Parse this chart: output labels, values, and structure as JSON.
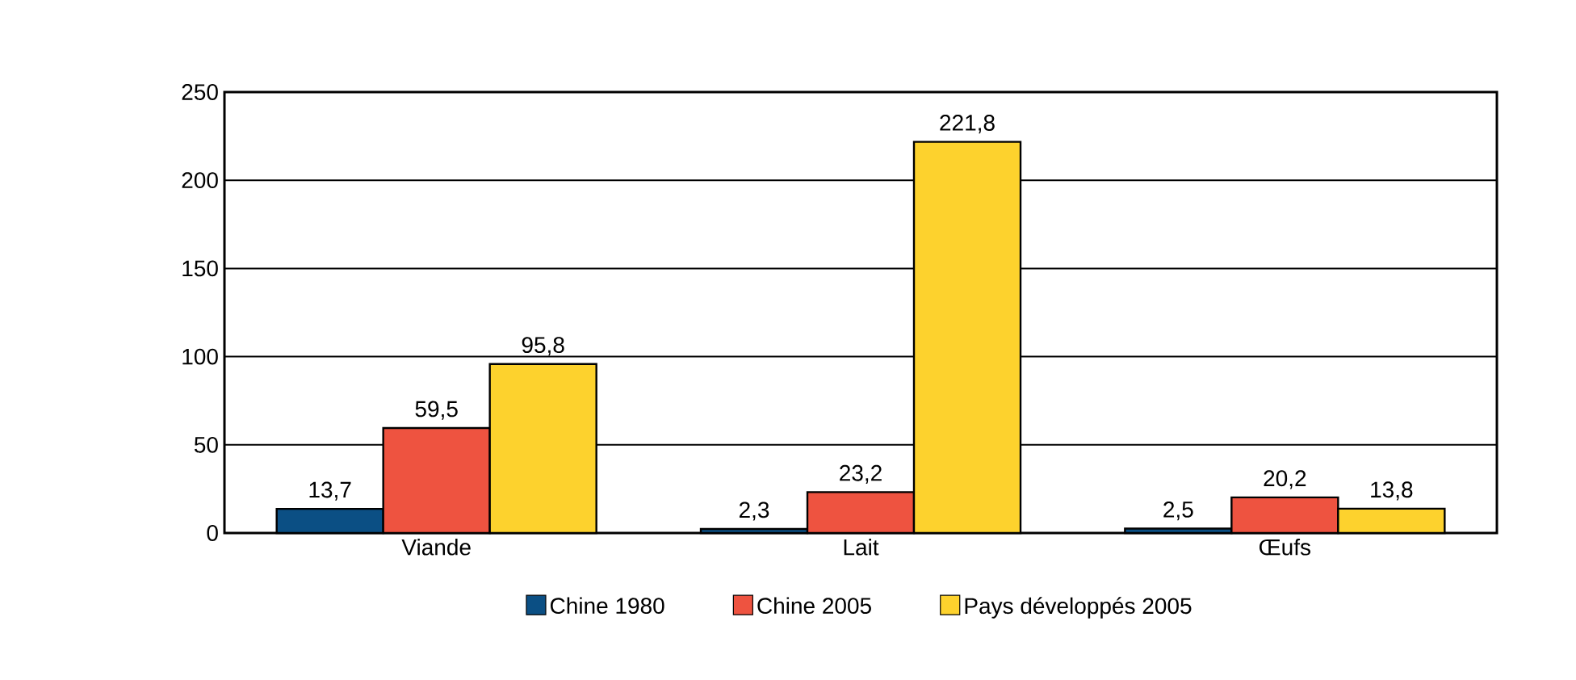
{
  "chart_data": {
    "type": "bar",
    "categories": [
      "Viande",
      "Lait",
      "Œufs"
    ],
    "series": [
      {
        "name": "Chine 1980",
        "color": "#0b4f84",
        "values": [
          13.7,
          2.3,
          2.5
        ]
      },
      {
        "name": "Chine 2005",
        "color": "#ee5340",
        "values": [
          59.5,
          23.2,
          20.2
        ]
      },
      {
        "name": "Pays développés 2005",
        "color": "#fdd22d",
        "values": [
          95.8,
          221.8,
          13.8
        ]
      }
    ],
    "value_labels": [
      [
        "13,7",
        "2,3",
        "2,5"
      ],
      [
        "59,5",
        "23,2",
        "20,2"
      ],
      [
        "95,8",
        "221,8",
        "13,8"
      ]
    ],
    "ylim": [
      0,
      250
    ],
    "yticks": [
      0,
      50,
      100,
      150,
      200,
      250
    ],
    "grid": "y",
    "legend": "bottom"
  }
}
